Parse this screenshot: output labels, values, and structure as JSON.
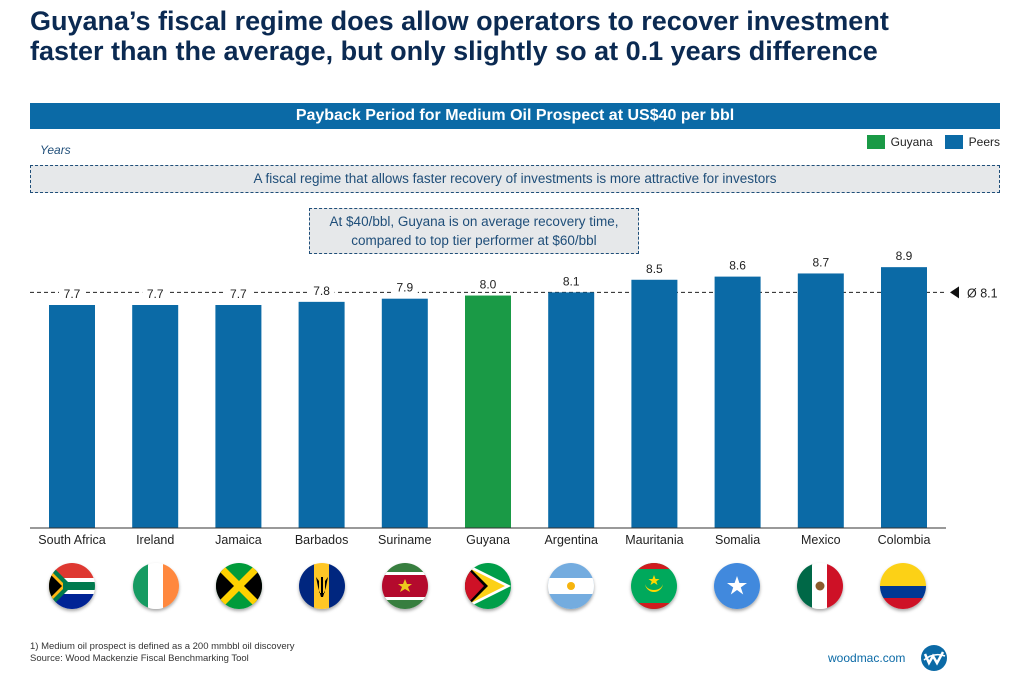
{
  "headline": {
    "line1": "Guyana’s fiscal regime does allow operators to recover investment",
    "line2": "faster than the average, but only slightly so at 0.1 years difference"
  },
  "banner": "Payback Period for Medium Oil Prospect at US$40 per bbl",
  "callout": "A fiscal regime that allows faster recovery of investments is more attractive for investors",
  "note": {
    "line1": "At $40/bbl, Guyana is on average recovery time,",
    "line2": "compared to top tier performer at $60/bbl"
  },
  "legend": [
    {
      "name": "Guyana",
      "color": "#1a9a46"
    },
    {
      "name": "Peers",
      "color": "#0b6aa6"
    }
  ],
  "chart_data": {
    "type": "bar",
    "ylabel": "Years",
    "categories": [
      "South Africa",
      "Ireland",
      "Jamaica",
      "Barbados",
      "Suriname",
      "Guyana",
      "Argentina",
      "Mauritania",
      "Somalia",
      "Mexico",
      "Colombia"
    ],
    "values": [
      7.7,
      7.7,
      7.7,
      7.8,
      7.9,
      8.0,
      8.1,
      8.5,
      8.6,
      8.7,
      8.9
    ],
    "data_labels": [
      "7.7",
      "7.7",
      "7.7",
      "7.8",
      "7.9",
      "8.0",
      "8.1",
      "8.5",
      "8.6",
      "8.7",
      "8.9"
    ],
    "series": [
      {
        "name": "Guyana",
        "indices": [
          5
        ]
      },
      {
        "name": "Peers",
        "indices": [
          0,
          1,
          2,
          3,
          4,
          6,
          7,
          8,
          9,
          10
        ]
      }
    ],
    "reference_line": {
      "value": 8.1,
      "label": "Ø 8.1"
    },
    "legend_position": "top-right",
    "grid": false
  },
  "flags": [
    "south-africa",
    "ireland",
    "jamaica",
    "barbados",
    "suriname",
    "guyana",
    "argentina",
    "mauritania",
    "somalia",
    "mexico",
    "colombia"
  ],
  "footnote": {
    "line1": "1) Medium oil prospect is defined as a 200 mmbbl oil discovery",
    "line2": "Source: Wood Mackenzie Fiscal Benchmarking Tool"
  },
  "brand": "woodmac.com"
}
